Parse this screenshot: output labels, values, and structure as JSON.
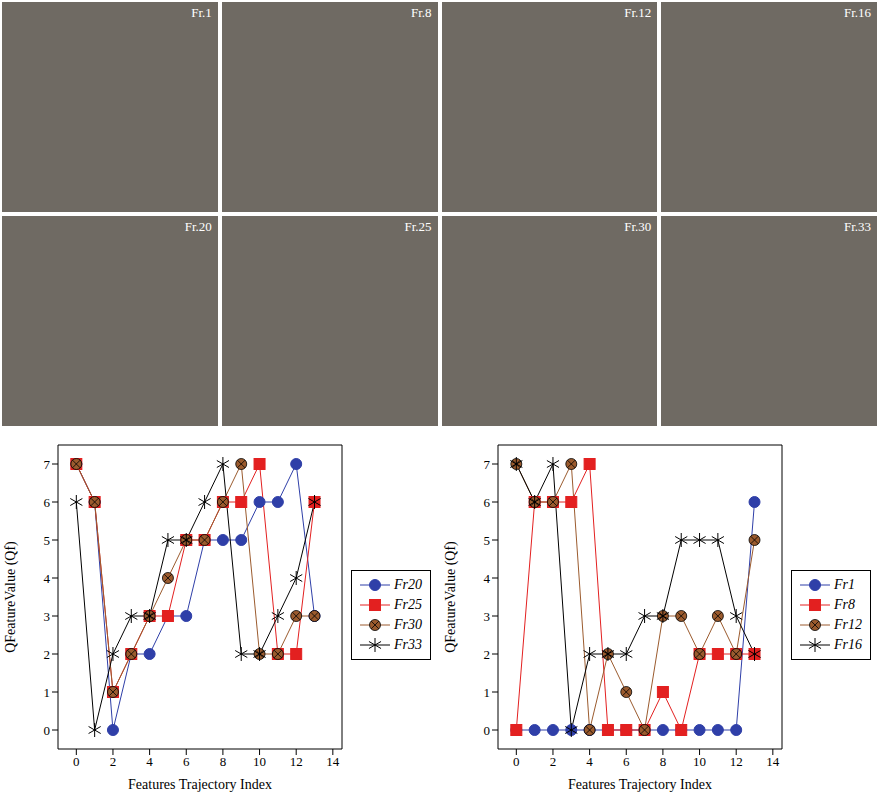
{
  "frames": [
    "Fr.1",
    "Fr.8",
    "Fr.12",
    "Fr.16",
    "Fr.20",
    "Fr.25",
    "Fr.30",
    "Fr.33"
  ],
  "chart_data": [
    {
      "type": "line",
      "x_label": "Features Trajectory Index",
      "y_label": "QFeatureValue (Qf)",
      "x": [
        0,
        1,
        2,
        3,
        4,
        5,
        6,
        7,
        8,
        9,
        10,
        11,
        12,
        13
      ],
      "xlim": [
        -1,
        14.5
      ],
      "xticks": [
        0,
        2,
        4,
        6,
        8,
        10,
        12,
        14
      ],
      "ylim": [
        -0.5,
        7.5
      ],
      "yticks": [
        0,
        1,
        2,
        3,
        4,
        5,
        6,
        7
      ],
      "legend": "right",
      "series": [
        {
          "name": "Fr20",
          "color": "#2f3fa8",
          "marker": "circle",
          "values": [
            7,
            6,
            0,
            2,
            2,
            3,
            3,
            5,
            5,
            5,
            6,
            6,
            7,
            3
          ]
        },
        {
          "name": "Fr25",
          "color": "#e32020",
          "marker": "square",
          "values": [
            7,
            6,
            1,
            2,
            3,
            3,
            5,
            5,
            6,
            6,
            7,
            2,
            2,
            6
          ]
        },
        {
          "name": "Fr30",
          "color": "#9b5b2e",
          "marker": "circle_cross",
          "values": [
            7,
            6,
            1,
            2,
            3,
            4,
            5,
            5,
            6,
            7,
            2,
            2,
            3,
            3
          ]
        },
        {
          "name": "Fr33",
          "color": "#000000",
          "marker": "star",
          "values": [
            6,
            0,
            2,
            3,
            3,
            5,
            5,
            6,
            7,
            2,
            2,
            3,
            4,
            6
          ]
        }
      ]
    },
    {
      "type": "line",
      "x_label": "Features Trajectory Index",
      "y_label": "QFeatureValue (Qf)",
      "x": [
        0,
        1,
        2,
        3,
        4,
        5,
        6,
        7,
        8,
        9,
        10,
        11,
        12,
        13
      ],
      "xlim": [
        -1,
        14.5
      ],
      "xticks": [
        0,
        2,
        4,
        6,
        8,
        10,
        12,
        14
      ],
      "ylim": [
        -0.5,
        7.5
      ],
      "yticks": [
        0,
        1,
        2,
        3,
        4,
        5,
        6,
        7
      ],
      "legend": "right",
      "series": [
        {
          "name": "Fr1",
          "color": "#2f3fa8",
          "marker": "circle",
          "values": [
            0,
            0,
            0,
            0,
            0,
            0,
            0,
            0,
            0,
            0,
            0,
            0,
            0,
            6
          ]
        },
        {
          "name": "Fr8",
          "color": "#e32020",
          "marker": "square",
          "values": [
            0,
            6,
            6,
            6,
            7,
            0,
            0,
            0,
            1,
            0,
            2,
            2,
            2,
            2
          ]
        },
        {
          "name": "Fr12",
          "color": "#9b5b2e",
          "marker": "circle_cross",
          "values": [
            7,
            6,
            6,
            7,
            0,
            2,
            1,
            0,
            3,
            3,
            2,
            3,
            2,
            5
          ]
        },
        {
          "name": "Fr16",
          "color": "#000000",
          "marker": "star",
          "values": [
            7,
            6,
            7,
            0,
            2,
            2,
            2,
            3,
            3,
            5,
            5,
            5,
            3,
            2
          ]
        }
      ]
    }
  ]
}
